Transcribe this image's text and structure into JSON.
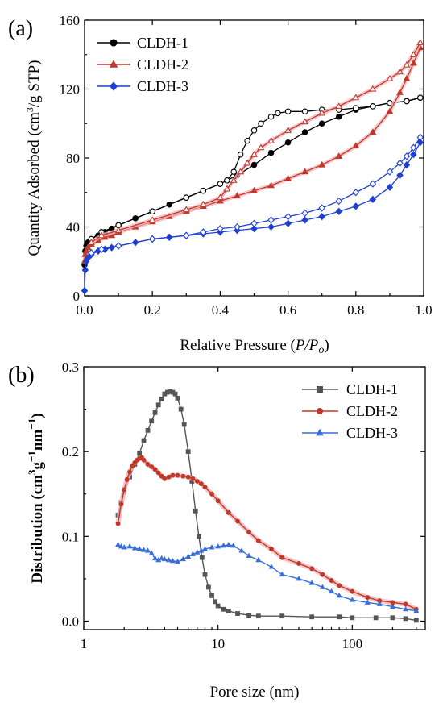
{
  "chart_data": [
    {
      "panel_label": "(a)",
      "type": "line",
      "xlabel_main": "Relative Pressure (",
      "xlabel_italic": "P/P",
      "xlabel_sub": "o",
      "xlabel_end": ")",
      "ylabel_main": "Quantity Adsorbed (cm",
      "ylabel_sup": "3",
      "ylabel_end": "/g STP)",
      "xlim": [
        0.0,
        1.0
      ],
      "ylim": [
        0,
        160
      ],
      "xticks": [
        "0.0",
        "0.2",
        "0.4",
        "0.6",
        "0.8",
        "1.0"
      ],
      "yticks": [
        "0",
        "40",
        "80",
        "120",
        "160"
      ],
      "legend_position": "top-left",
      "series": [
        {
          "name": "CLDH-1",
          "color": "#000000",
          "marker": "circle",
          "adsorption": {
            "x": [
              0.0,
              0.002,
              0.005,
              0.01,
              0.02,
              0.04,
              0.06,
              0.08,
              0.1,
              0.15,
              0.2,
              0.25,
              0.3,
              0.35,
              0.4,
              0.45,
              0.5,
              0.55,
              0.6,
              0.65,
              0.7,
              0.75,
              0.8,
              0.85,
              0.9,
              0.95,
              0.99
            ],
            "y": [
              18,
              26,
              29,
              31,
              33,
              35,
              37,
              39,
              41,
              45,
              49,
              53,
              57,
              61,
              65,
              70,
              76,
              83,
              89,
              95,
              100,
              104,
              108,
              110,
              112,
              113,
              115
            ]
          },
          "desorption": {
            "x": [
              0.99,
              0.95,
              0.9,
              0.85,
              0.8,
              0.75,
              0.7,
              0.65,
              0.6,
              0.57,
              0.55,
              0.52,
              0.5,
              0.48,
              0.46,
              0.44,
              0.42,
              0.4,
              0.35,
              0.3,
              0.2,
              0.1,
              0.05,
              0.02
            ],
            "y": [
              115,
              113,
              112,
              110,
              109,
              108,
              108,
              107,
              107,
              106,
              104,
              100,
              96,
              90,
              82,
              72,
              67,
              65,
              61,
              57,
              49,
              41,
              37,
              33
            ]
          }
        },
        {
          "name": "CLDH-2",
          "color": "#c0392b",
          "marker": "triangle",
          "adsorption": {
            "x": [
              0.0,
              0.002,
              0.005,
              0.01,
              0.02,
              0.04,
              0.06,
              0.08,
              0.1,
              0.15,
              0.2,
              0.25,
              0.3,
              0.35,
              0.4,
              0.45,
              0.5,
              0.55,
              0.6,
              0.65,
              0.7,
              0.75,
              0.8,
              0.85,
              0.9,
              0.93,
              0.95,
              0.97,
              0.99
            ],
            "y": [
              20,
              24,
              26,
              28,
              30,
              32,
              34,
              35,
              37,
              40,
              43,
              46,
              49,
              52,
              55,
              58,
              61,
              64,
              68,
              72,
              76,
              81,
              87,
              95,
              107,
              118,
              126,
              135,
              144
            ]
          },
          "desorption": {
            "x": [
              0.99,
              0.97,
              0.95,
              0.93,
              0.9,
              0.85,
              0.8,
              0.75,
              0.7,
              0.65,
              0.6,
              0.55,
              0.52,
              0.5,
              0.48,
              0.46,
              0.44,
              0.42,
              0.4,
              0.35,
              0.3,
              0.2,
              0.1,
              0.05,
              0.02
            ],
            "y": [
              147,
              140,
              134,
              130,
              126,
              120,
              115,
              110,
              106,
              101,
              96,
              90,
              86,
              82,
              77,
              72,
              67,
              62,
              57,
              53,
              50,
              44,
              38,
              35,
              31
            ]
          }
        },
        {
          "name": "CLDH-3",
          "color": "#1f3fd1",
          "marker": "diamond",
          "adsorption": {
            "x": [
              0.0,
              0.002,
              0.005,
              0.01,
              0.02,
              0.04,
              0.06,
              0.08,
              0.1,
              0.15,
              0.2,
              0.25,
              0.3,
              0.35,
              0.4,
              0.45,
              0.5,
              0.55,
              0.6,
              0.65,
              0.7,
              0.75,
              0.8,
              0.85,
              0.9,
              0.93,
              0.95,
              0.97,
              0.99
            ],
            "y": [
              3,
              15,
              20,
              22,
              24,
              26,
              27,
              28,
              29,
              31,
              33,
              34,
              35,
              36,
              37,
              38,
              39,
              40,
              42,
              44,
              46,
              49,
              52,
              56,
              63,
              70,
              76,
              82,
              89
            ]
          },
          "desorption": {
            "x": [
              0.99,
              0.97,
              0.95,
              0.93,
              0.9,
              0.85,
              0.8,
              0.75,
              0.7,
              0.65,
              0.6,
              0.55,
              0.5,
              0.45,
              0.4,
              0.35,
              0.3,
              0.2,
              0.1,
              0.05,
              0.02
            ],
            "y": [
              92,
              86,
              81,
              77,
              72,
              65,
              60,
              55,
              51,
              48,
              46,
              44,
              42,
              40,
              39,
              37,
              35,
              33,
              29,
              27,
              25
            ]
          }
        }
      ]
    },
    {
      "panel_label": "(b)",
      "type": "line",
      "x_scale": "log",
      "xlabel": "Pore size (nm)",
      "ylabel_main": "Distribution (cm",
      "ylabel_sup1": "3",
      "ylabel_mid": "g",
      "ylabel_sup2": "−1",
      "ylabel_mid2": "nm",
      "ylabel_sup3": "−1",
      "ylabel_end": ")",
      "xlim": [
        1,
        350
      ],
      "ylim": [
        -0.01,
        0.3
      ],
      "xticks": [
        {
          "value": 1,
          "label": "1"
        },
        {
          "value": 10,
          "label": "10"
        },
        {
          "value": 100,
          "label": "100"
        }
      ],
      "yticks": [
        "0.0",
        "0.1",
        "0.2",
        "0.3"
      ],
      "legend_position": "top-right",
      "series": [
        {
          "name": "CLDH-1",
          "color": "#555555",
          "marker": "square",
          "x": [
            1.8,
            1.9,
            2.0,
            2.2,
            2.4,
            2.6,
            2.8,
            3.0,
            3.2,
            3.4,
            3.6,
            3.8,
            4.0,
            4.2,
            4.4,
            4.6,
            4.8,
            5.0,
            5.3,
            5.6,
            6.0,
            6.4,
            6.8,
            7.2,
            7.6,
            8.0,
            8.5,
            9.0,
            9.5,
            10,
            11,
            12,
            14,
            17,
            20,
            30,
            50,
            80,
            100,
            150,
            200,
            250,
            300
          ],
          "y": [
            0.125,
            0.14,
            0.152,
            0.17,
            0.185,
            0.198,
            0.213,
            0.225,
            0.236,
            0.246,
            0.255,
            0.262,
            0.268,
            0.27,
            0.271,
            0.27,
            0.268,
            0.263,
            0.25,
            0.232,
            0.2,
            0.165,
            0.13,
            0.1,
            0.075,
            0.055,
            0.04,
            0.03,
            0.023,
            0.018,
            0.014,
            0.012,
            0.009,
            0.007,
            0.006,
            0.006,
            0.005,
            0.005,
            0.004,
            0.004,
            0.004,
            0.003,
            0.001
          ]
        },
        {
          "name": "CLDH-2",
          "color": "#c0392b",
          "marker": "circle",
          "x": [
            1.8,
            1.9,
            2.0,
            2.1,
            2.2,
            2.3,
            2.4,
            2.5,
            2.6,
            2.7,
            2.8,
            3.0,
            3.2,
            3.4,
            3.6,
            3.8,
            4.0,
            4.3,
            4.6,
            5.0,
            5.5,
            6.0,
            6.5,
            7.0,
            7.5,
            8.0,
            9.0,
            10,
            12,
            14,
            17,
            20,
            25,
            30,
            40,
            50,
            60,
            70,
            80,
            100,
            130,
            160,
            200,
            250,
            300
          ],
          "y": [
            0.115,
            0.138,
            0.155,
            0.167,
            0.176,
            0.183,
            0.187,
            0.19,
            0.192,
            0.193,
            0.19,
            0.185,
            0.182,
            0.179,
            0.175,
            0.171,
            0.168,
            0.17,
            0.172,
            0.172,
            0.171,
            0.17,
            0.168,
            0.165,
            0.162,
            0.158,
            0.15,
            0.142,
            0.128,
            0.118,
            0.105,
            0.095,
            0.085,
            0.075,
            0.068,
            0.062,
            0.055,
            0.048,
            0.042,
            0.035,
            0.028,
            0.024,
            0.022,
            0.02,
            0.014
          ]
        },
        {
          "name": "CLDH-3",
          "color": "#3a6fd8",
          "marker": "triangle",
          "x": [
            1.8,
            1.9,
            2.0,
            2.2,
            2.4,
            2.6,
            2.8,
            3.0,
            3.2,
            3.4,
            3.6,
            3.8,
            4.0,
            4.3,
            4.6,
            5.0,
            5.5,
            6.0,
            6.5,
            7.0,
            7.5,
            8.0,
            9.0,
            10,
            11,
            12,
            13,
            15,
            17,
            20,
            25,
            30,
            40,
            50,
            60,
            70,
            80,
            100,
            130,
            160,
            200,
            250,
            300
          ],
          "y": [
            0.09,
            0.088,
            0.087,
            0.088,
            0.086,
            0.085,
            0.084,
            0.083,
            0.08,
            0.074,
            0.072,
            0.074,
            0.073,
            0.072,
            0.071,
            0.07,
            0.073,
            0.076,
            0.079,
            0.081,
            0.083,
            0.085,
            0.087,
            0.088,
            0.089,
            0.09,
            0.089,
            0.083,
            0.077,
            0.072,
            0.064,
            0.055,
            0.05,
            0.045,
            0.04,
            0.035,
            0.03,
            0.025,
            0.022,
            0.02,
            0.017,
            0.014,
            0.012
          ]
        }
      ]
    }
  ]
}
